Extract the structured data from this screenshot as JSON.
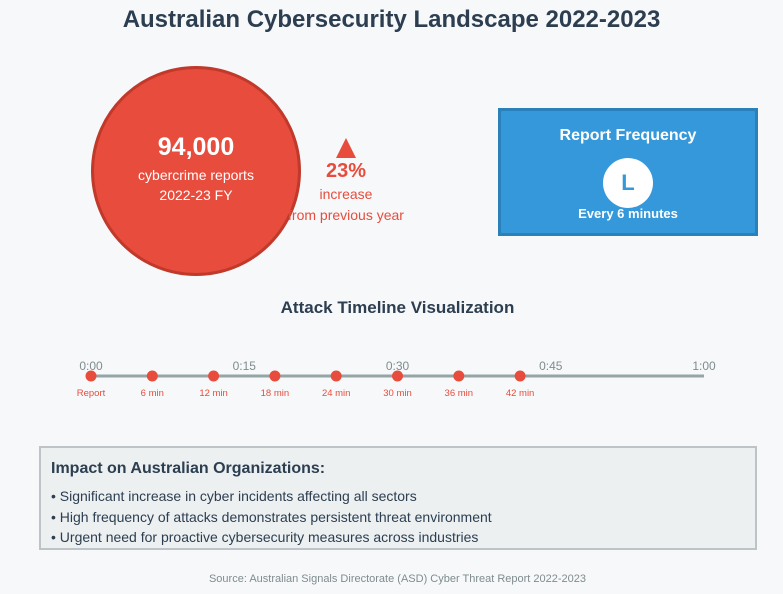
{
  "title": "Australian Cybersecurity Landscape 2022-2023",
  "reports": {
    "number": "94,000",
    "label": "cybercrime reports",
    "period": "2022-23 FY"
  },
  "increase": {
    "percent": "23%",
    "line1": "increase",
    "line2": "from previous year"
  },
  "frequency": {
    "title": "Report Frequency",
    "icon_letter": "L",
    "icon": "clock-icon",
    "value": "Every 6 minutes"
  },
  "timeline": {
    "title": "Attack Timeline Visualization",
    "minutes_range": [
      0,
      60
    ],
    "ticks": [
      {
        "minute": 0,
        "label": "0:00"
      },
      {
        "minute": 15,
        "label": "0:15"
      },
      {
        "minute": 30,
        "label": "0:30"
      },
      {
        "minute": 45,
        "label": "0:45"
      },
      {
        "minute": 60,
        "label": "1:00"
      }
    ],
    "events": [
      {
        "minute": 0,
        "label": "Report"
      },
      {
        "minute": 6,
        "label": "6 min"
      },
      {
        "minute": 12,
        "label": "12 min"
      },
      {
        "minute": 18,
        "label": "18 min"
      },
      {
        "minute": 24,
        "label": "24 min"
      },
      {
        "minute": 30,
        "label": "30 min"
      },
      {
        "minute": 36,
        "label": "36 min"
      },
      {
        "minute": 42,
        "label": "42 min"
      }
    ]
  },
  "impact": {
    "title": "Impact on Australian Organizations:",
    "items": [
      "• Significant increase in cyber incidents affecting all sectors",
      "• High frequency of attacks demonstrates persistent threat environment",
      "• Urgent need for proactive cybersecurity measures across industries"
    ]
  },
  "source": "Source: Australian Signals Directorate (ASD) Cyber Threat Report 2022-2023",
  "colors": {
    "red": "#e74c3c",
    "blue": "#3498db",
    "dark": "#2c3e50",
    "line": "#95a5a6"
  }
}
